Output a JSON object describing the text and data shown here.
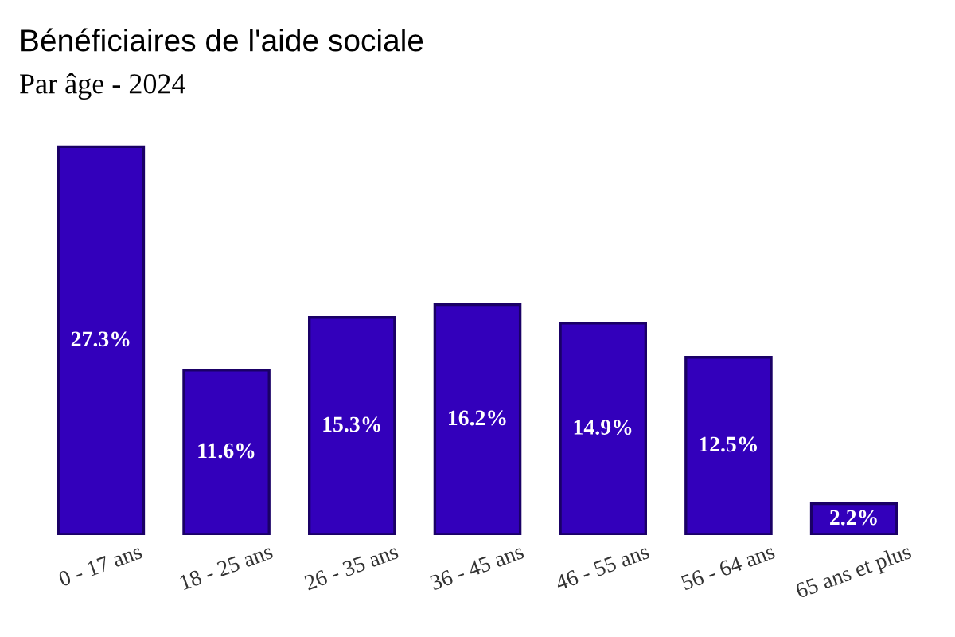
{
  "chart_data": {
    "type": "bar",
    "title": "Bénéficiaires de l'aide sociale",
    "subtitle": "Par âge - 2024",
    "categories": [
      "0 - 17 ans",
      "18 - 25 ans",
      "26 - 35 ans",
      "36 - 45 ans",
      "46 - 55 ans",
      "56 - 64 ans",
      "65 ans et plus"
    ],
    "values": [
      27.3,
      11.6,
      15.3,
      16.2,
      14.9,
      12.5,
      2.2
    ],
    "value_labels": [
      "27.3%",
      "11.6%",
      "15.3%",
      "16.2%",
      "14.9%",
      "12.5%",
      "2.2%"
    ],
    "color": "#3300bb",
    "grid": false,
    "legend": false
  }
}
